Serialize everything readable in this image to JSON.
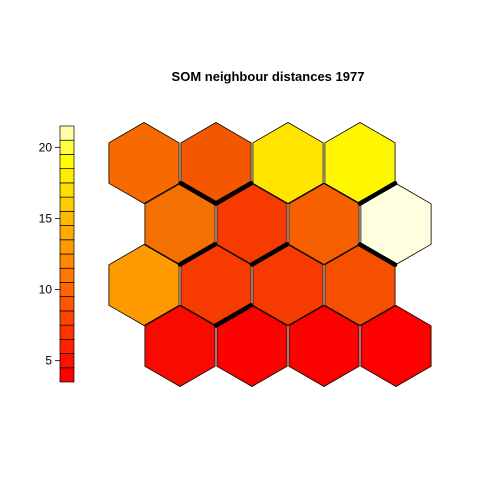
{
  "chart_data": {
    "type": "heatmap",
    "title": "SOM neighbour distances 1977",
    "xlabel": "",
    "ylabel": "",
    "grid": {
      "rows": 4,
      "cols": 4,
      "shape": "hexagonal"
    },
    "cells": [
      {
        "row": 1,
        "col": 1,
        "value": 17.0,
        "color": "#F66A00"
      },
      {
        "row": 1,
        "col": 2,
        "value": 16.0,
        "color": "#F55600"
      },
      {
        "row": 1,
        "col": 3,
        "value": 19.0,
        "color": "#FFE400"
      },
      {
        "row": 1,
        "col": 4,
        "value": 19.5,
        "color": "#FFF700"
      },
      {
        "row": 2,
        "col": 1,
        "value": 16.5,
        "color": "#F47000"
      },
      {
        "row": 2,
        "col": 2,
        "value": 14.0,
        "color": "#F73B00"
      },
      {
        "row": 2,
        "col": 3,
        "value": 16.5,
        "color": "#F66000"
      },
      {
        "row": 2,
        "col": 4,
        "value": 21.0,
        "color": "#FFFFE0"
      },
      {
        "row": 3,
        "col": 1,
        "value": 18.0,
        "color": "#FF9900"
      },
      {
        "row": 3,
        "col": 2,
        "value": 13.5,
        "color": "#F73A00"
      },
      {
        "row": 3,
        "col": 3,
        "value": 13.5,
        "color": "#F73A00"
      },
      {
        "row": 3,
        "col": 4,
        "value": 15.0,
        "color": "#F55000"
      },
      {
        "row": 4,
        "col": 1,
        "value": 6.0,
        "color": "#F80A00"
      },
      {
        "row": 4,
        "col": 2,
        "value": 5.5,
        "color": "#FA0200"
      },
      {
        "row": 4,
        "col": 3,
        "value": 5.5,
        "color": "#FA0200"
      },
      {
        "row": 4,
        "col": 4,
        "value": 5.0,
        "color": "#FF0000"
      }
    ],
    "color_scale": {
      "range": [
        3.5,
        21.5
      ],
      "ticks": [
        "5",
        "10",
        "15",
        "20"
      ],
      "colors": [
        "#FF0000",
        "#FF1100",
        "#FF2200",
        "#FF3300",
        "#FF4400",
        "#FF5500",
        "#FF6600",
        "#FF7700",
        "#FF8800",
        "#FF9900",
        "#FFAA00",
        "#FFBB00",
        "#FFCC00",
        "#FFDD00",
        "#FFEE00",
        "#FFFF00",
        "#FFFF40",
        "#FFFFAA"
      ],
      "placement": "left"
    },
    "boundaries": [
      {
        "between": [
          [
            1,
            2
          ],
          [
            2,
            2
          ]
        ]
      },
      {
        "between": [
          [
            1,
            2
          ],
          [
            2,
            1
          ]
        ]
      },
      {
        "between": [
          [
            2,
            1
          ],
          [
            2,
            2
          ]
        ]
      },
      {
        "between": [
          [
            2,
            1
          ],
          [
            3,
            2
          ]
        ]
      },
      {
        "between": [
          [
            2,
            2
          ],
          [
            2,
            3
          ]
        ]
      },
      {
        "between": [
          [
            2,
            2
          ],
          [
            3,
            3
          ]
        ]
      },
      {
        "between": [
          [
            3,
            2
          ],
          [
            3,
            3
          ]
        ]
      },
      {
        "between": [
          [
            3,
            2
          ],
          [
            4,
            2
          ]
        ]
      },
      {
        "between": [
          [
            3,
            3
          ],
          [
            3,
            4
          ]
        ]
      },
      {
        "between": [
          [
            1,
            4
          ],
          [
            2,
            4
          ]
        ]
      },
      {
        "between": [
          [
            2,
            3
          ],
          [
            2,
            4
          ]
        ]
      },
      {
        "between": [
          [
            3,
            4
          ],
          [
            2,
            4
          ]
        ]
      }
    ]
  }
}
